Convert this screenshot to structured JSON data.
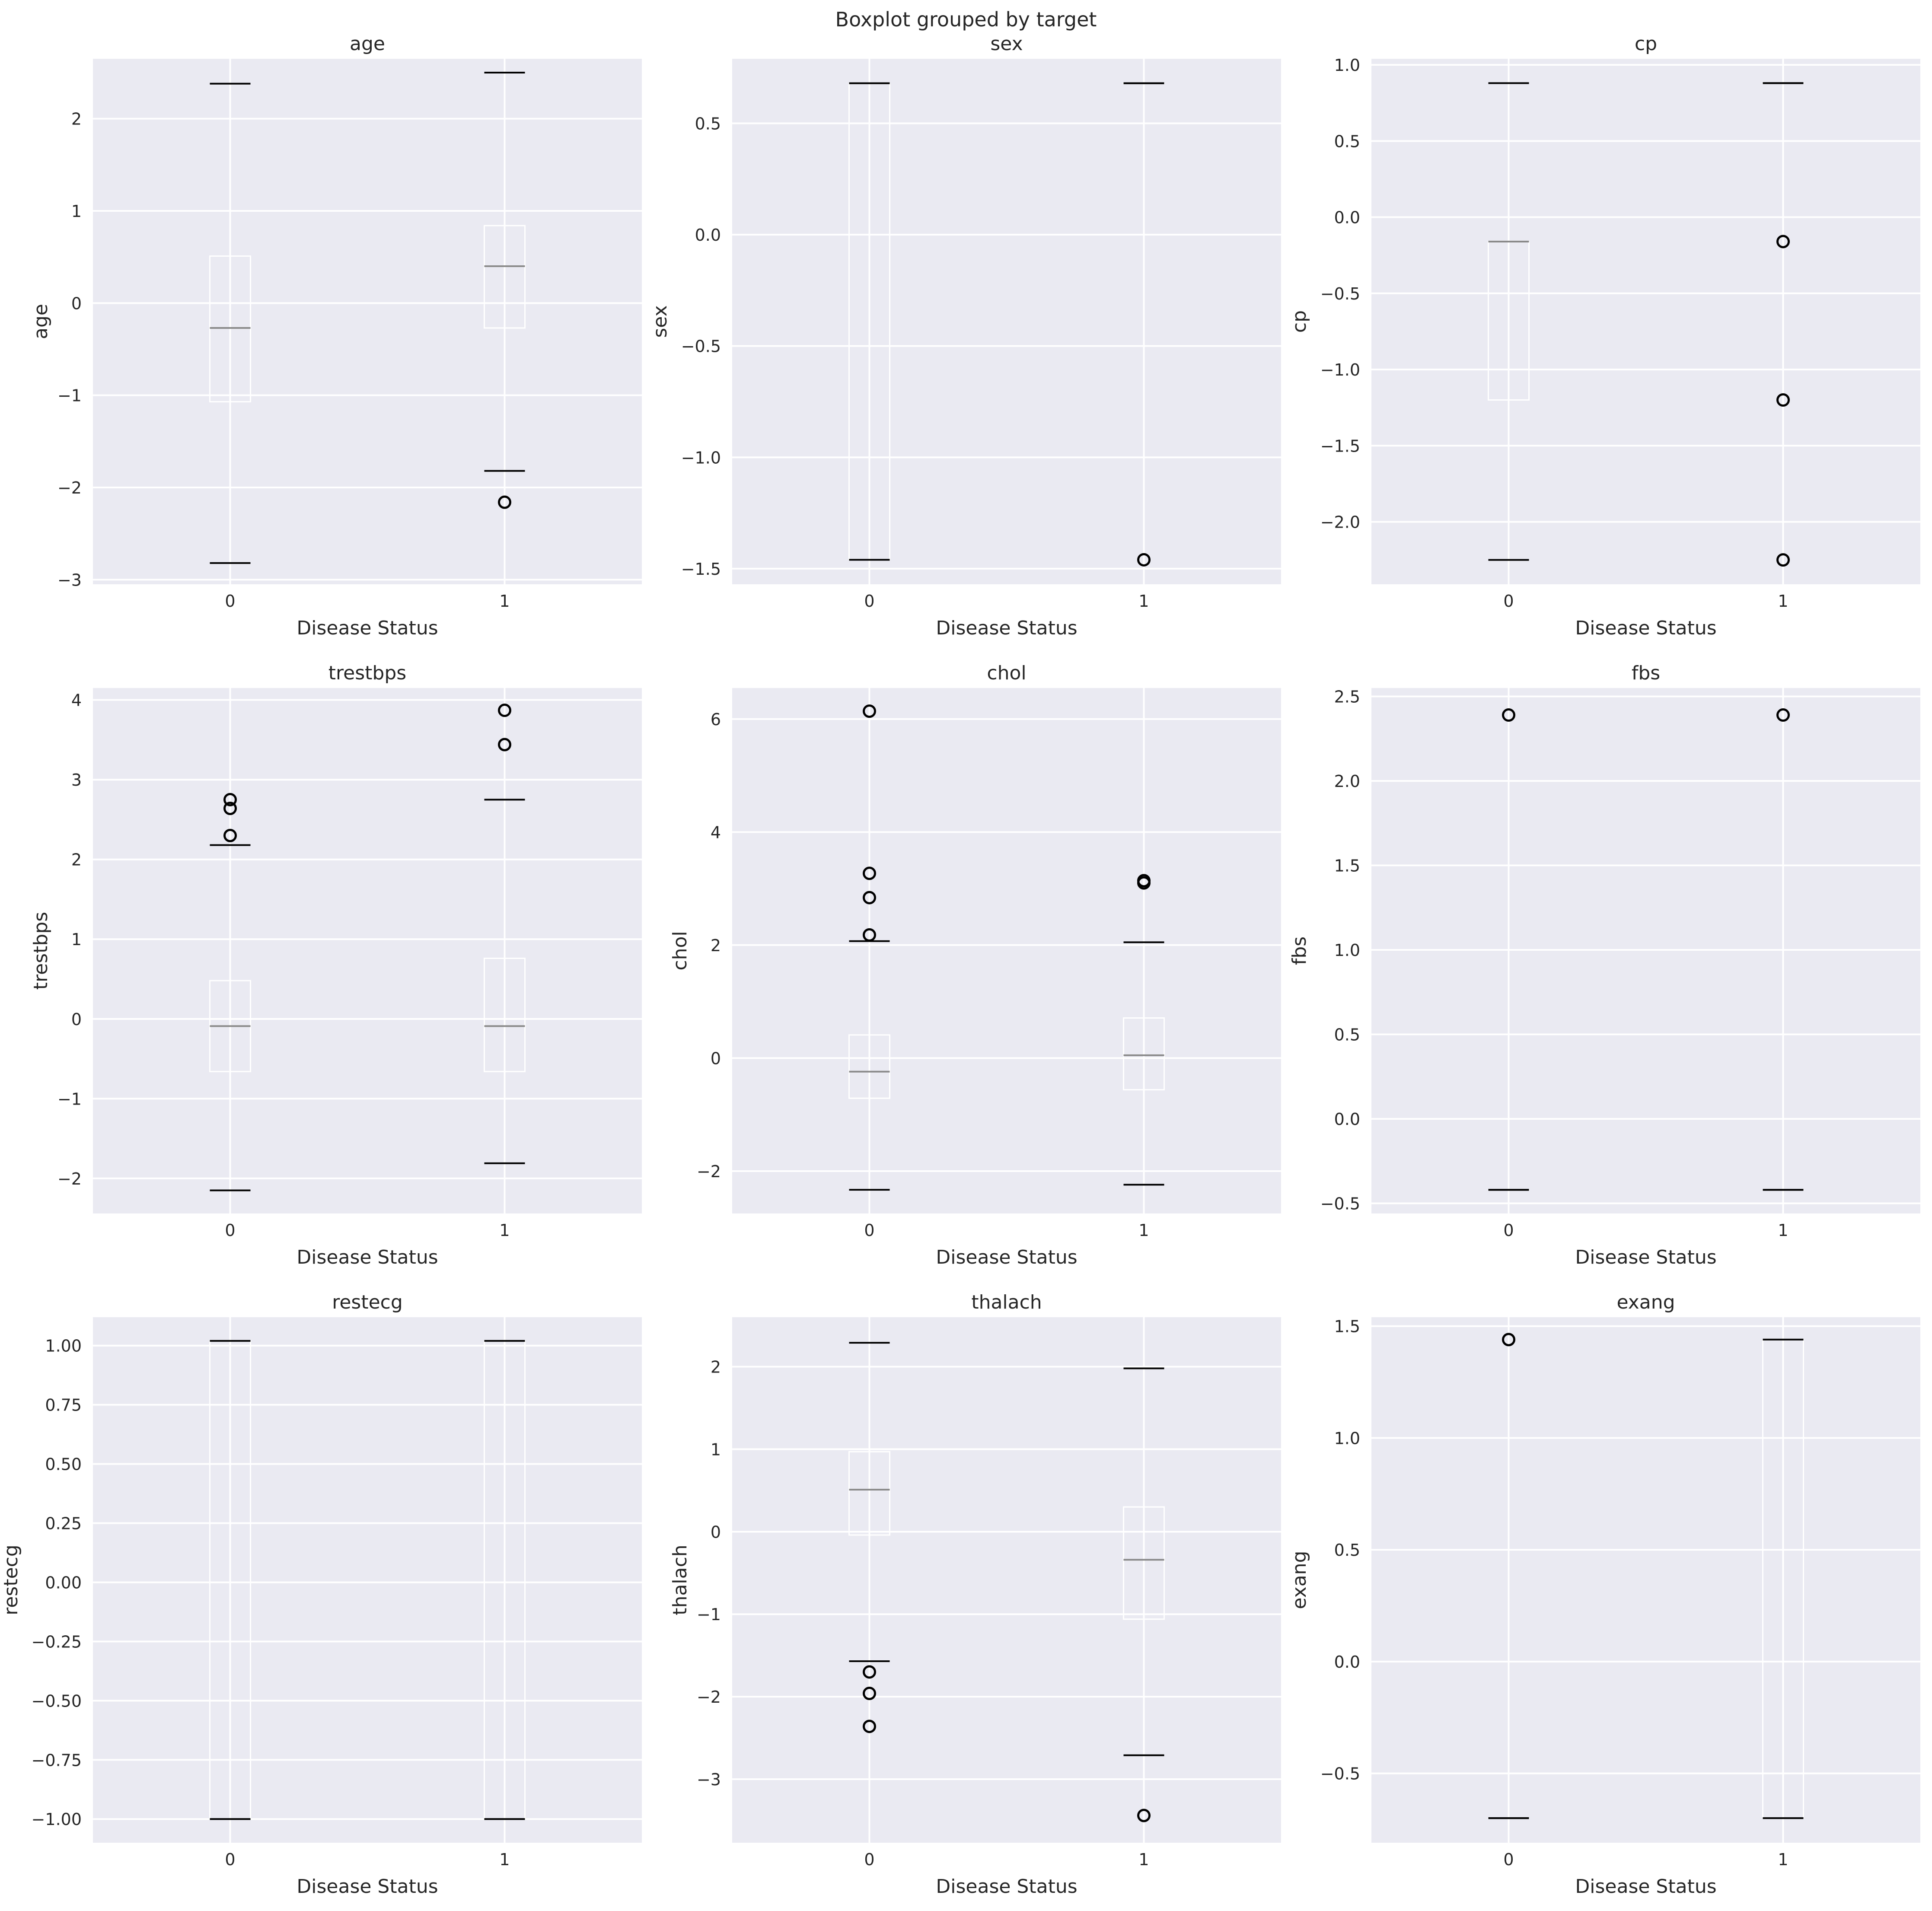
{
  "figure": {
    "suptitle": "Boxplot grouped by target"
  },
  "chart_data": [
    {
      "type": "box",
      "title": "age",
      "xlabel": "Disease Status",
      "ylabel": "age",
      "categories": [
        "0",
        "1"
      ],
      "ylim": [
        -3.05,
        2.65
      ],
      "yticks": [
        -3,
        -2,
        -1,
        0,
        1,
        2
      ],
      "ytick_decimals": 0,
      "boxes": [
        {
          "category": "0",
          "whislo": -2.82,
          "q1": -1.07,
          "med": -0.27,
          "q3": 0.51,
          "whishi": 2.38,
          "fliers": []
        },
        {
          "category": "1",
          "whislo": -1.82,
          "q1": -0.27,
          "med": 0.4,
          "q3": 0.84,
          "whishi": 2.5,
          "fliers": [
            -2.16
          ]
        }
      ]
    },
    {
      "type": "box",
      "title": "sex",
      "xlabel": "Disease Status",
      "ylabel": "sex",
      "categories": [
        "0",
        "1"
      ],
      "ylim": [
        -1.57,
        0.79
      ],
      "yticks": [
        -1.5,
        -1.0,
        -0.5,
        0.0,
        0.5
      ],
      "ytick_decimals": 1,
      "boxes": [
        {
          "category": "0",
          "whislo": -1.46,
          "q1": -1.46,
          "med": 0.68,
          "q3": 0.68,
          "whishi": 0.68,
          "fliers": []
        },
        {
          "category": "1",
          "whislo": 0.68,
          "q1": 0.68,
          "med": 0.68,
          "q3": 0.68,
          "whishi": 0.68,
          "fliers": [
            -1.46
          ]
        }
      ]
    },
    {
      "type": "box",
      "title": "cp",
      "xlabel": "Disease Status",
      "ylabel": "cp",
      "categories": [
        "0",
        "1"
      ],
      "ylim": [
        -2.41,
        1.04
      ],
      "yticks": [
        -2.0,
        -1.5,
        -1.0,
        -0.5,
        0.0,
        0.5,
        1.0
      ],
      "ytick_decimals": 1,
      "boxes": [
        {
          "category": "0",
          "whislo": -2.25,
          "q1": -1.2,
          "med": -0.16,
          "q3": -0.16,
          "whishi": 0.88,
          "fliers": []
        },
        {
          "category": "1",
          "whislo": 0.88,
          "q1": 0.88,
          "med": 0.88,
          "q3": 0.88,
          "whishi": 0.88,
          "fliers": [
            -0.16,
            -1.2,
            -2.25
          ]
        }
      ]
    },
    {
      "type": "box",
      "title": "trestbps",
      "xlabel": "Disease Status",
      "ylabel": "trestbps",
      "categories": [
        "0",
        "1"
      ],
      "ylim": [
        -2.44,
        4.15
      ],
      "yticks": [
        -2,
        -1,
        0,
        1,
        2,
        3,
        4
      ],
      "ytick_decimals": 0,
      "boxes": [
        {
          "category": "0",
          "whislo": -2.15,
          "q1": -0.66,
          "med": -0.09,
          "q3": 0.48,
          "whishi": 2.18,
          "fliers": [
            2.3,
            2.64,
            2.75
          ]
        },
        {
          "category": "1",
          "whislo": -1.81,
          "q1": -0.66,
          "med": -0.09,
          "q3": 0.76,
          "whishi": 2.75,
          "fliers": [
            3.44,
            3.87
          ]
        }
      ]
    },
    {
      "type": "box",
      "title": "chol",
      "xlabel": "Disease Status",
      "ylabel": "chol",
      "categories": [
        "0",
        "1"
      ],
      "ylim": [
        -2.75,
        6.55
      ],
      "yticks": [
        -2,
        0,
        2,
        4,
        6
      ],
      "ytick_decimals": 0,
      "boxes": [
        {
          "category": "0",
          "whislo": -2.33,
          "q1": -0.71,
          "med": -0.24,
          "q3": 0.41,
          "whishi": 2.07,
          "fliers": [
            2.18,
            2.84,
            3.27,
            6.14
          ]
        },
        {
          "category": "1",
          "whislo": -2.24,
          "q1": -0.56,
          "med": 0.05,
          "q3": 0.71,
          "whishi": 2.05,
          "fliers": [
            3.1,
            3.14
          ]
        }
      ]
    },
    {
      "type": "box",
      "title": "fbs",
      "xlabel": "Disease Status",
      "ylabel": "fbs",
      "categories": [
        "0",
        "1"
      ],
      "ylim": [
        -0.56,
        2.55
      ],
      "yticks": [
        -0.5,
        0.0,
        0.5,
        1.0,
        1.5,
        2.0,
        2.5
      ],
      "ytick_decimals": 1,
      "boxes": [
        {
          "category": "0",
          "whislo": -0.42,
          "q1": -0.42,
          "med": -0.42,
          "q3": -0.42,
          "whishi": -0.42,
          "fliers": [
            2.39
          ]
        },
        {
          "category": "1",
          "whislo": -0.42,
          "q1": -0.42,
          "med": -0.42,
          "q3": -0.42,
          "whishi": -0.42,
          "fliers": [
            2.39
          ]
        }
      ]
    },
    {
      "type": "box",
      "title": "restecg",
      "xlabel": "Disease Status",
      "ylabel": "restecg",
      "categories": [
        "0",
        "1"
      ],
      "ylim": [
        -1.1,
        1.12
      ],
      "yticks": [
        -1.0,
        -0.75,
        -0.5,
        -0.25,
        0.0,
        0.25,
        0.5,
        0.75,
        1.0
      ],
      "ytick_decimals": 2,
      "boxes": [
        {
          "category": "0",
          "whislo": -1.0,
          "q1": -1.0,
          "med": -1.0,
          "q3": 1.02,
          "whishi": 1.02,
          "fliers": []
        },
        {
          "category": "1",
          "whislo": -1.0,
          "q1": -1.0,
          "med": -1.0,
          "q3": 1.02,
          "whishi": 1.02,
          "fliers": []
        }
      ]
    },
    {
      "type": "box",
      "title": "thalach",
      "xlabel": "Disease Status",
      "ylabel": "thalach",
      "categories": [
        "0",
        "1"
      ],
      "ylim": [
        -3.77,
        2.6
      ],
      "yticks": [
        -3,
        -2,
        -1,
        0,
        1,
        2
      ],
      "ytick_decimals": 0,
      "boxes": [
        {
          "category": "0",
          "whislo": -1.57,
          "q1": -0.04,
          "med": 0.51,
          "q3": 0.97,
          "whishi": 2.29,
          "fliers": [
            -1.7,
            -1.96,
            -2.36
          ]
        },
        {
          "category": "1",
          "whislo": -2.71,
          "q1": -1.06,
          "med": -0.34,
          "q3": 0.3,
          "whishi": 1.98,
          "fliers": [
            -3.44
          ]
        }
      ]
    },
    {
      "type": "box",
      "title": "exang",
      "xlabel": "Disease Status",
      "ylabel": "exang",
      "categories": [
        "0",
        "1"
      ],
      "ylim": [
        -0.81,
        1.54
      ],
      "yticks": [
        -0.5,
        0.0,
        0.5,
        1.0,
        1.5
      ],
      "ytick_decimals": 1,
      "boxes": [
        {
          "category": "0",
          "whislo": -0.7,
          "q1": -0.7,
          "med": -0.7,
          "q3": -0.7,
          "whishi": -0.7,
          "fliers": [
            1.44
          ]
        },
        {
          "category": "1",
          "whislo": -0.7,
          "q1": -0.7,
          "med": -0.7,
          "q3": 1.44,
          "whishi": 1.44,
          "fliers": []
        }
      ]
    }
  ]
}
